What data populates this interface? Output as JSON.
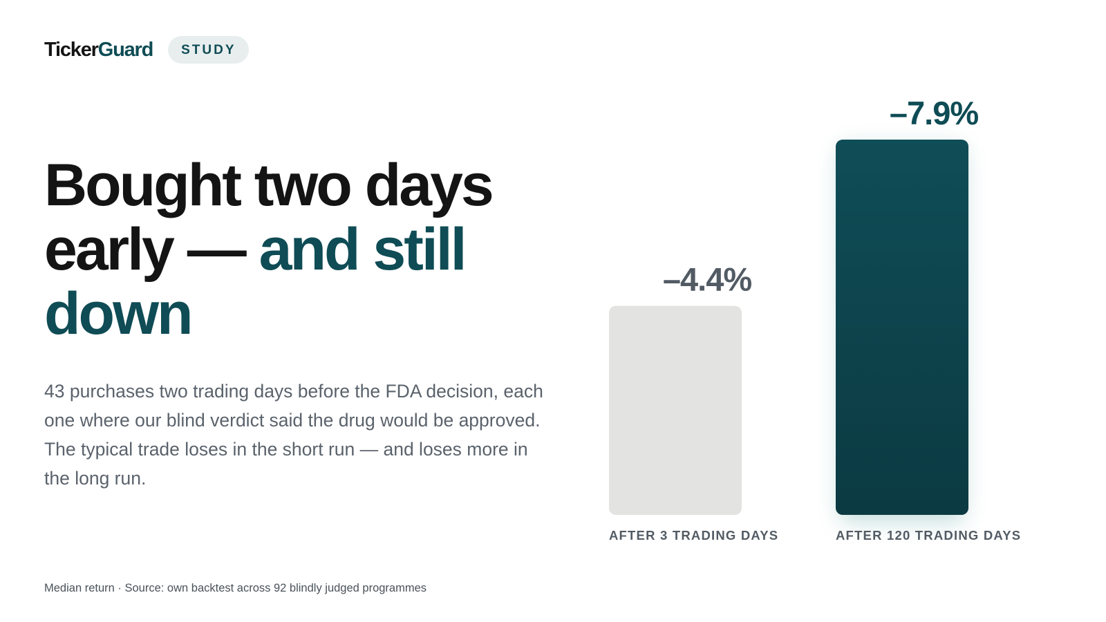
{
  "brand": {
    "name_part1": "Ticker",
    "name_part2": "Guard",
    "badge": "STUDY"
  },
  "headline": {
    "line1": "Bought two days",
    "line2_dark": "early — ",
    "line2_accent": "and still",
    "line3_accent": "down"
  },
  "description": "43 purchases two trading days before the FDA decision, each one where our blind verdict said the drug would be approved. The typical trade loses in the short run — and loses more in the long run.",
  "footnote": "Median return · Source: own backtest across 92 blindly judged programmes",
  "colors": {
    "accent": "#0f4c55",
    "bar_light": "#e3e3e2",
    "text_muted": "#525b64"
  },
  "chart_data": {
    "type": "bar",
    "categories": [
      "AFTER 3 TRADING DAYS",
      "AFTER 120 TRADING DAYS"
    ],
    "values": [
      -4.4,
      -7.9
    ],
    "value_labels": [
      "–4.4%",
      "–7.9%"
    ],
    "unit": "%"
  }
}
